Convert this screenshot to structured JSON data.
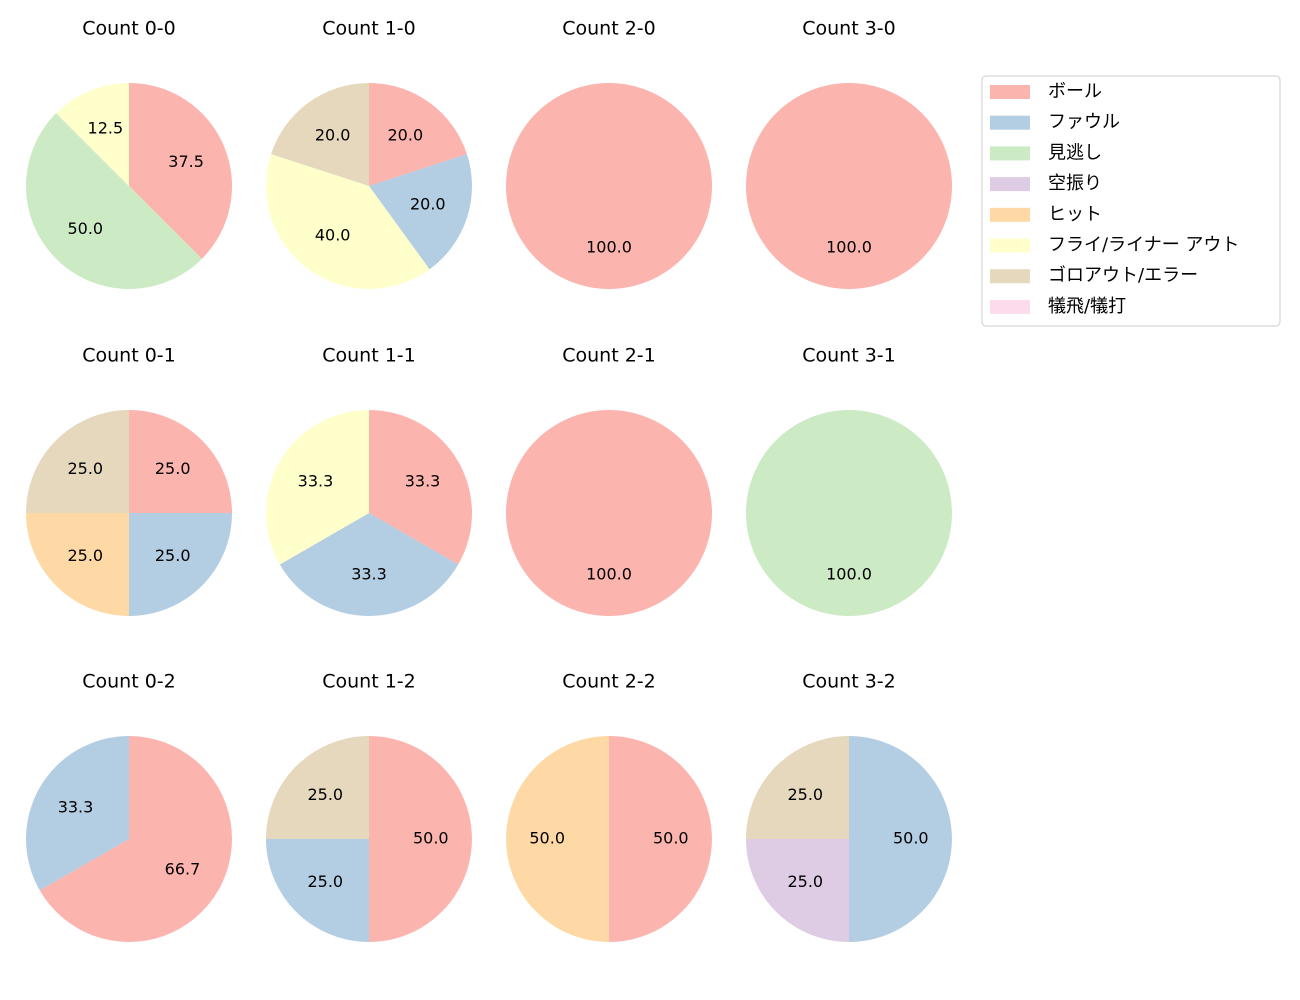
{
  "chart_data": [
    {
      "type": "pie",
      "title": "Count 0-0",
      "values": [
        37.5,
        0,
        50,
        0,
        0,
        12.5,
        0,
        0
      ],
      "value_labels": [
        "37.5",
        null,
        "50.0",
        null,
        null,
        "12.5",
        null,
        null
      ]
    },
    {
      "type": "pie",
      "title": "Count 1-0",
      "values": [
        20,
        20,
        0,
        0,
        0,
        40,
        20,
        0
      ],
      "value_labels": [
        "20.0",
        "20.0",
        null,
        null,
        null,
        "40.0",
        "20.0",
        null
      ]
    },
    {
      "type": "pie",
      "title": "Count 2-0",
      "values": [
        100,
        0,
        0,
        0,
        0,
        0,
        0,
        0
      ],
      "value_labels": [
        "100.0",
        null,
        null,
        null,
        null,
        null,
        null,
        null
      ]
    },
    {
      "type": "pie",
      "title": "Count 3-0",
      "values": [
        100,
        0,
        0,
        0,
        0,
        0,
        0,
        0
      ],
      "value_labels": [
        "100.0",
        null,
        null,
        null,
        null,
        null,
        null,
        null
      ]
    },
    {
      "type": "pie",
      "title": "Count 0-1",
      "values": [
        25,
        25,
        0,
        0,
        25,
        0,
        25,
        0
      ],
      "value_labels": [
        "25.0",
        "25.0",
        null,
        null,
        "25.0",
        null,
        "25.0",
        null
      ]
    },
    {
      "type": "pie",
      "title": "Count 1-1",
      "values": [
        33.3,
        33.3,
        0,
        0,
        0,
        33.3,
        0,
        0
      ],
      "value_labels": [
        "33.3",
        "33.3",
        null,
        null,
        null,
        "33.3",
        null,
        null
      ]
    },
    {
      "type": "pie",
      "title": "Count 2-1",
      "values": [
        100,
        0,
        0,
        0,
        0,
        0,
        0,
        0
      ],
      "value_labels": [
        "100.0",
        null,
        null,
        null,
        null,
        null,
        null,
        null
      ]
    },
    {
      "type": "pie",
      "title": "Count 3-1",
      "values": [
        0,
        0,
        100,
        0,
        0,
        0,
        0,
        0
      ],
      "value_labels": [
        null,
        null,
        "100.0",
        null,
        null,
        null,
        null,
        null
      ]
    },
    {
      "type": "pie",
      "title": "Count 0-2",
      "values": [
        66.7,
        33.3,
        0,
        0,
        0,
        0,
        0,
        0
      ],
      "value_labels": [
        "66.7",
        "33.3",
        null,
        null,
        null,
        null,
        null,
        null
      ]
    },
    {
      "type": "pie",
      "title": "Count 1-2",
      "values": [
        50,
        25,
        0,
        0,
        0,
        0,
        25,
        0
      ],
      "value_labels": [
        "50.0",
        "25.0",
        null,
        null,
        null,
        null,
        "25.0",
        null
      ]
    },
    {
      "type": "pie",
      "title": "Count 2-2",
      "values": [
        50,
        0,
        0,
        0,
        50,
        0,
        0,
        0
      ],
      "value_labels": [
        "50.0",
        null,
        null,
        null,
        "50.0",
        null,
        null,
        null
      ]
    },
    {
      "type": "pie",
      "title": "Count 3-2",
      "values": [
        0,
        50,
        0,
        25,
        0,
        0,
        25,
        0
      ],
      "value_labels": [
        null,
        "50.0",
        null,
        "25.0",
        null,
        null,
        "25.0",
        null
      ]
    }
  ],
  "legend": {
    "position": "upper right",
    "labels": [
      "ボール",
      "ファウル",
      "見逃し",
      "空振り",
      "ヒット",
      "フライ/ライナー アウト",
      "ゴロアウト/エラー",
      "犠飛/犠打"
    ],
    "colors": [
      "#fbb4ae",
      "#b3cde3",
      "#ccebc5",
      "#decbe4",
      "#fed9a6",
      "#ffffcc",
      "#e5d8bd",
      "#fddaec"
    ]
  }
}
